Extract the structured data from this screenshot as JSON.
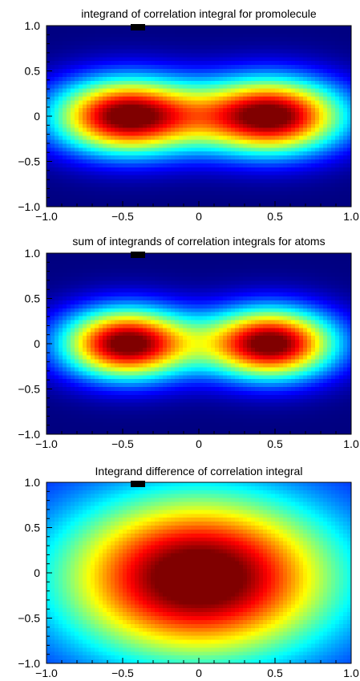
{
  "chart_data": [
    {
      "type": "heatmap",
      "title": "integrand of correlation integral for promolecule",
      "xlabel": "",
      "ylabel": "",
      "xlim": [
        -1.0,
        1.0
      ],
      "ylim": [
        -1.0,
        1.0
      ],
      "xticks": [
        "−1.0",
        "−0.5",
        "0",
        "0.5",
        "1.0"
      ],
      "yticks": [
        "1.0",
        "0.5",
        "0",
        "−0.5",
        "−1.0"
      ],
      "colormap": "jet",
      "peaks": [
        {
          "x": -0.47,
          "y": 0.0,
          "sx": 0.34,
          "sy": 0.29,
          "amp": 1.0
        },
        {
          "x": 0.47,
          "y": 0.0,
          "sx": 0.34,
          "sy": 0.29,
          "amp": 1.0
        }
      ],
      "marker": {
        "x": -0.4,
        "y": 1.0
      }
    },
    {
      "type": "heatmap",
      "title": "sum of integrands of correlation integrals for atoms",
      "xlabel": "",
      "ylabel": "",
      "xlim": [
        -1.0,
        1.0
      ],
      "ylim": [
        -1.0,
        1.0
      ],
      "xticks": [
        "−1.0",
        "−0.5",
        "0",
        "0.5",
        "1.0"
      ],
      "yticks": [
        "1.0",
        "0.5",
        "0",
        "−0.5",
        "−1.0"
      ],
      "colormap": "jet",
      "peaks": [
        {
          "x": -0.47,
          "y": 0.0,
          "sx": 0.3,
          "sy": 0.27,
          "amp": 1.0
        },
        {
          "x": 0.47,
          "y": 0.0,
          "sx": 0.3,
          "sy": 0.27,
          "amp": 1.0
        }
      ],
      "marker": {
        "x": -0.4,
        "y": 1.0
      }
    },
    {
      "type": "heatmap",
      "title": "Integrand difference of correlation integral",
      "xlabel": "",
      "ylabel": "",
      "xlim": [
        -1.0,
        1.0
      ],
      "ylim": [
        -1.0,
        1.0
      ],
      "xticks": [
        "−1.0",
        "−0.5",
        "0",
        "0.5",
        "1.0"
      ],
      "yticks": [
        "1.0",
        "0.5",
        "0",
        "−0.5",
        "−1.0"
      ],
      "colormap": "jet",
      "peaks": [
        {
          "x": 0.0,
          "y": -0.05,
          "sx": 0.62,
          "sy": 0.62,
          "amp": 1.0
        }
      ],
      "marker": {
        "x": -0.4,
        "y": 1.0
      }
    }
  ]
}
